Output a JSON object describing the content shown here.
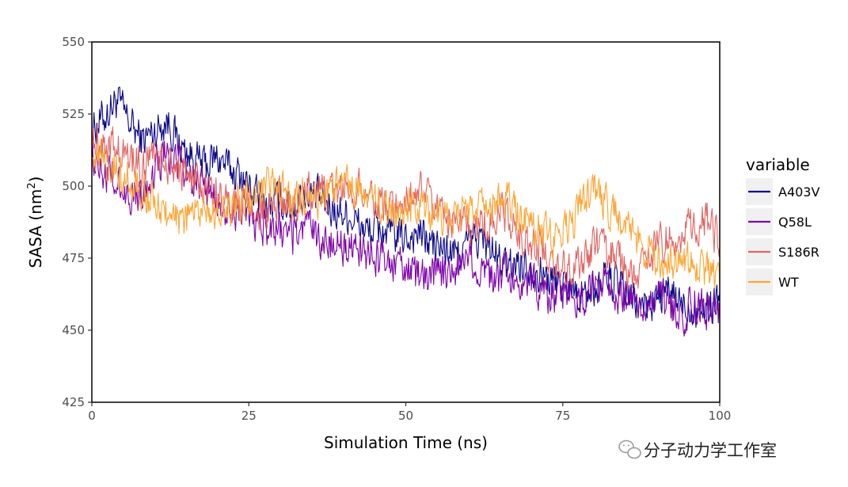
{
  "chart_data": {
    "type": "line",
    "title": "",
    "xlabel": "Simulation Time (ns)",
    "ylabel_main": "SASA (nm",
    "ylabel_sup": "2",
    "ylabel_close": ")",
    "xlim": [
      0,
      100
    ],
    "ylim": [
      425,
      550
    ],
    "xticks": [
      0,
      25,
      50,
      75,
      100
    ],
    "yticks": [
      425,
      450,
      475,
      500,
      525,
      550
    ],
    "grid": false,
    "legend_title": "variable",
    "legend_position": "right",
    "series": [
      {
        "name": "A403V",
        "color": "#0d0887",
        "noise": 6,
        "x": [
          0,
          2,
          4,
          6,
          8,
          10,
          12,
          14,
          16,
          18,
          20,
          22,
          24,
          26,
          28,
          30,
          32,
          34,
          36,
          38,
          40,
          42,
          44,
          46,
          48,
          50,
          52,
          54,
          56,
          58,
          60,
          62,
          64,
          66,
          68,
          70,
          72,
          74,
          76,
          78,
          80,
          82,
          84,
          86,
          88,
          90,
          92,
          94,
          96,
          98,
          100
        ],
        "y": [
          520,
          524,
          530,
          522,
          516,
          519,
          523,
          514,
          510,
          507,
          510,
          506,
          503,
          497,
          493,
          495,
          493,
          498,
          496,
          492,
          491,
          488,
          484,
          485,
          483,
          482,
          484,
          480,
          478,
          476,
          480,
          482,
          477,
          471,
          474,
          472,
          469,
          466,
          466,
          462,
          464,
          469,
          465,
          460,
          458,
          461,
          463,
          459,
          458,
          457,
          462
        ]
      },
      {
        "name": "Q58L",
        "color": "#7e03a8",
        "noise": 6,
        "x": [
          0,
          2,
          4,
          6,
          8,
          10,
          12,
          14,
          16,
          18,
          20,
          22,
          24,
          26,
          28,
          30,
          32,
          34,
          36,
          38,
          40,
          42,
          44,
          46,
          48,
          50,
          52,
          54,
          56,
          58,
          60,
          62,
          64,
          66,
          68,
          70,
          72,
          74,
          76,
          78,
          80,
          82,
          84,
          86,
          88,
          90,
          92,
          94,
          96,
          98,
          100
        ],
        "y": [
          512,
          505,
          500,
          497,
          498,
          506,
          511,
          508,
          503,
          499,
          494,
          492,
          490,
          488,
          485,
          484,
          482,
          486,
          483,
          480,
          479,
          478,
          476,
          474,
          473,
          472,
          468,
          469,
          470,
          473,
          475,
          472,
          466,
          470,
          469,
          466,
          463,
          462,
          463,
          460,
          465,
          466,
          462,
          460,
          459,
          462,
          458,
          455,
          460,
          457,
          458
        ]
      },
      {
        "name": "S186R",
        "color": "#e16462",
        "noise": 6,
        "x": [
          0,
          2,
          4,
          6,
          8,
          10,
          12,
          14,
          16,
          18,
          20,
          22,
          24,
          26,
          28,
          30,
          32,
          34,
          36,
          38,
          40,
          42,
          44,
          46,
          48,
          50,
          52,
          54,
          56,
          58,
          60,
          62,
          64,
          66,
          68,
          70,
          72,
          74,
          76,
          78,
          80,
          82,
          84,
          86,
          88,
          90,
          92,
          94,
          96,
          98,
          100
        ],
        "y": [
          518,
          515,
          512,
          510,
          507,
          512,
          508,
          505,
          502,
          500,
          497,
          494,
          493,
          491,
          493,
          496,
          493,
          498,
          499,
          497,
          499,
          500,
          498,
          494,
          492,
          496,
          500,
          494,
          491,
          488,
          484,
          486,
          489,
          491,
          484,
          480,
          478,
          474,
          471,
          474,
          480,
          477,
          474,
          470,
          472,
          480,
          482,
          484,
          486,
          488,
          480
        ]
      },
      {
        "name": "WT",
        "color": "#fca636",
        "noise": 6,
        "x": [
          0,
          2,
          4,
          6,
          8,
          10,
          12,
          14,
          16,
          18,
          20,
          22,
          24,
          26,
          28,
          30,
          32,
          34,
          36,
          38,
          40,
          42,
          44,
          46,
          48,
          50,
          52,
          54,
          56,
          58,
          60,
          62,
          64,
          66,
          68,
          70,
          72,
          74,
          76,
          78,
          80,
          82,
          84,
          86,
          88,
          90,
          92,
          94,
          96,
          98,
          100
        ],
        "y": [
          514,
          508,
          506,
          502,
          498,
          494,
          490,
          487,
          491,
          493,
          489,
          492,
          495,
          497,
          500,
          498,
          495,
          496,
          494,
          498,
          501,
          499,
          495,
          493,
          490,
          492,
          493,
          490,
          489,
          490,
          492,
          494,
          493,
          496,
          490,
          486,
          484,
          482,
          486,
          494,
          499,
          494,
          487,
          483,
          479,
          476,
          474,
          475,
          472,
          470,
          470
        ]
      }
    ]
  },
  "watermark": {
    "text": "分子动力学工作室",
    "icon": "wechat-icon"
  }
}
